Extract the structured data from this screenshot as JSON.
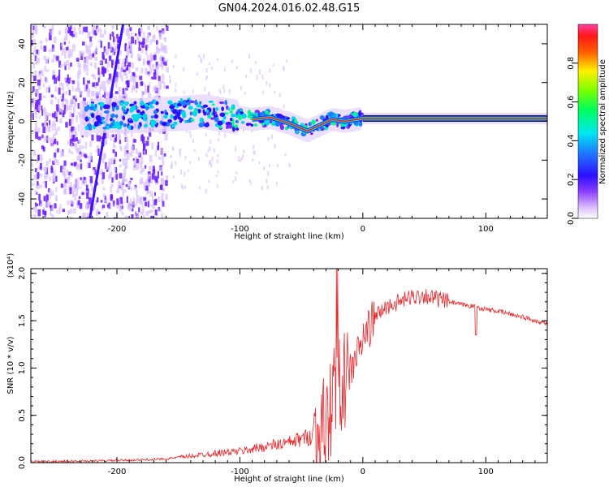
{
  "title": "GN04.2024.016.02.48.G15",
  "colors": {
    "snr_line": "#e8272b",
    "doppler_core": "#ff2020",
    "scatter_purple": "#7b2cff"
  },
  "chart_data": [
    {
      "type": "heatmap",
      "description_of_content": "spectrogram",
      "xlabel": "Height of straight line (km)",
      "ylabel": "Frequency (Hz)",
      "xlim": [
        -270,
        150
      ],
      "ylim": [
        -50,
        50
      ],
      "x_ticks": [
        -200,
        -100,
        0,
        100
      ],
      "y_ticks": [
        -40,
        -20,
        0,
        20,
        40
      ],
      "colorbar": {
        "label": "Normalized spectral amplitude",
        "range": [
          0,
          1
        ],
        "ticks": [
          "0.0",
          "0.2",
          "0.4",
          "0.6",
          "0.8"
        ],
        "colormap": "rainbow"
      },
      "features": {
        "dense_noise_region_x": [
          -270,
          -160
        ],
        "diagonal_streak": {
          "from": [
            -222,
            -50
          ],
          "to": [
            -195,
            50
          ]
        },
        "signal_centerline": [
          [
            -220,
            3
          ],
          [
            -180,
            3
          ],
          [
            -150,
            4
          ],
          [
            -130,
            5
          ],
          [
            -110,
            3
          ],
          [
            -90,
            1
          ],
          [
            -75,
            2
          ],
          [
            -60,
            -1
          ],
          [
            -45,
            -5
          ],
          [
            -35,
            -2
          ],
          [
            -25,
            1
          ],
          [
            -15,
            0
          ],
          [
            -5,
            1
          ],
          [
            0,
            1.5
          ],
          [
            50,
            1.5
          ],
          [
            100,
            1.5
          ],
          [
            150,
            1.5
          ]
        ]
      }
    },
    {
      "type": "line",
      "xlabel": "Height of straight line (km)",
      "ylabel": "SNR (10 * v/v)",
      "y_multiplier": "(x10⁴)",
      "xlim": [
        -270,
        150
      ],
      "ylim": [
        0,
        2.05
      ],
      "x_ticks": [
        -200,
        -100,
        0,
        100
      ],
      "y_ticks": [
        "0.0",
        "0.5",
        "1.0",
        "1.5",
        "2.0"
      ],
      "series": [
        {
          "x": [
            -270,
            -240,
            -210,
            -180,
            -160,
            -140,
            -120,
            -100,
            -80,
            -60,
            -45,
            -35,
            -28,
            -24,
            -20,
            -16,
            -12,
            -8,
            -4,
            0,
            10,
            20,
            30,
            40,
            50,
            60,
            70,
            80,
            90,
            100,
            110,
            120,
            130,
            140,
            150
          ],
          "y": [
            0.01,
            0.015,
            0.02,
            0.03,
            0.04,
            0.07,
            0.1,
            0.12,
            0.17,
            0.21,
            0.27,
            0.32,
            0.45,
            0.75,
            1.0,
            0.8,
            0.9,
            1.05,
            1.15,
            1.3,
            1.55,
            1.65,
            1.7,
            1.75,
            1.77,
            1.73,
            1.7,
            1.67,
            1.65,
            1.62,
            1.6,
            1.57,
            1.54,
            1.5,
            1.47
          ]
        }
      ]
    }
  ]
}
